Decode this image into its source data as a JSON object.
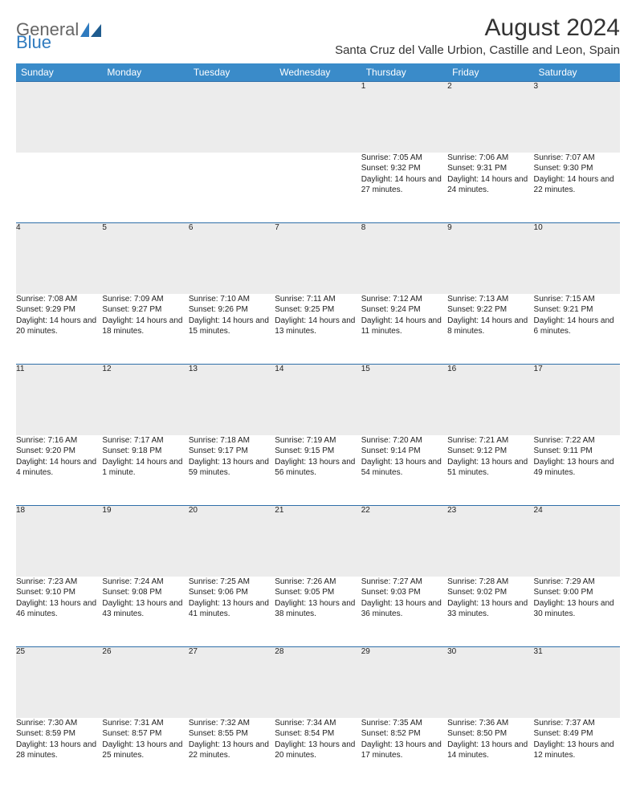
{
  "brand": {
    "part1": "General",
    "part2": "Blue"
  },
  "title": "August 2024",
  "location": "Santa Cruz del Valle Urbion, Castille and Leon, Spain",
  "colors": {
    "header_bg": "#3a8bc9",
    "header_text": "#ffffff",
    "daynum_bg": "#ececec",
    "row_border": "#2f6fa8",
    "text": "#222222",
    "brand_gray": "#666666",
    "brand_blue": "#2f7bbf"
  },
  "daysOfWeek": [
    "Sunday",
    "Monday",
    "Tuesday",
    "Wednesday",
    "Thursday",
    "Friday",
    "Saturday"
  ],
  "weeks": [
    [
      null,
      null,
      null,
      null,
      {
        "n": "1",
        "sr": "7:05 AM",
        "ss": "9:32 PM",
        "dl": "14 hours and 27 minutes."
      },
      {
        "n": "2",
        "sr": "7:06 AM",
        "ss": "9:31 PM",
        "dl": "14 hours and 24 minutes."
      },
      {
        "n": "3",
        "sr": "7:07 AM",
        "ss": "9:30 PM",
        "dl": "14 hours and 22 minutes."
      }
    ],
    [
      {
        "n": "4",
        "sr": "7:08 AM",
        "ss": "9:29 PM",
        "dl": "14 hours and 20 minutes."
      },
      {
        "n": "5",
        "sr": "7:09 AM",
        "ss": "9:27 PM",
        "dl": "14 hours and 18 minutes."
      },
      {
        "n": "6",
        "sr": "7:10 AM",
        "ss": "9:26 PM",
        "dl": "14 hours and 15 minutes."
      },
      {
        "n": "7",
        "sr": "7:11 AM",
        "ss": "9:25 PM",
        "dl": "14 hours and 13 minutes."
      },
      {
        "n": "8",
        "sr": "7:12 AM",
        "ss": "9:24 PM",
        "dl": "14 hours and 11 minutes."
      },
      {
        "n": "9",
        "sr": "7:13 AM",
        "ss": "9:22 PM",
        "dl": "14 hours and 8 minutes."
      },
      {
        "n": "10",
        "sr": "7:15 AM",
        "ss": "9:21 PM",
        "dl": "14 hours and 6 minutes."
      }
    ],
    [
      {
        "n": "11",
        "sr": "7:16 AM",
        "ss": "9:20 PM",
        "dl": "14 hours and 4 minutes."
      },
      {
        "n": "12",
        "sr": "7:17 AM",
        "ss": "9:18 PM",
        "dl": "14 hours and 1 minute."
      },
      {
        "n": "13",
        "sr": "7:18 AM",
        "ss": "9:17 PM",
        "dl": "13 hours and 59 minutes."
      },
      {
        "n": "14",
        "sr": "7:19 AM",
        "ss": "9:15 PM",
        "dl": "13 hours and 56 minutes."
      },
      {
        "n": "15",
        "sr": "7:20 AM",
        "ss": "9:14 PM",
        "dl": "13 hours and 54 minutes."
      },
      {
        "n": "16",
        "sr": "7:21 AM",
        "ss": "9:12 PM",
        "dl": "13 hours and 51 minutes."
      },
      {
        "n": "17",
        "sr": "7:22 AM",
        "ss": "9:11 PM",
        "dl": "13 hours and 49 minutes."
      }
    ],
    [
      {
        "n": "18",
        "sr": "7:23 AM",
        "ss": "9:10 PM",
        "dl": "13 hours and 46 minutes."
      },
      {
        "n": "19",
        "sr": "7:24 AM",
        "ss": "9:08 PM",
        "dl": "13 hours and 43 minutes."
      },
      {
        "n": "20",
        "sr": "7:25 AM",
        "ss": "9:06 PM",
        "dl": "13 hours and 41 minutes."
      },
      {
        "n": "21",
        "sr": "7:26 AM",
        "ss": "9:05 PM",
        "dl": "13 hours and 38 minutes."
      },
      {
        "n": "22",
        "sr": "7:27 AM",
        "ss": "9:03 PM",
        "dl": "13 hours and 36 minutes."
      },
      {
        "n": "23",
        "sr": "7:28 AM",
        "ss": "9:02 PM",
        "dl": "13 hours and 33 minutes."
      },
      {
        "n": "24",
        "sr": "7:29 AM",
        "ss": "9:00 PM",
        "dl": "13 hours and 30 minutes."
      }
    ],
    [
      {
        "n": "25",
        "sr": "7:30 AM",
        "ss": "8:59 PM",
        "dl": "13 hours and 28 minutes."
      },
      {
        "n": "26",
        "sr": "7:31 AM",
        "ss": "8:57 PM",
        "dl": "13 hours and 25 minutes."
      },
      {
        "n": "27",
        "sr": "7:32 AM",
        "ss": "8:55 PM",
        "dl": "13 hours and 22 minutes."
      },
      {
        "n": "28",
        "sr": "7:34 AM",
        "ss": "8:54 PM",
        "dl": "13 hours and 20 minutes."
      },
      {
        "n": "29",
        "sr": "7:35 AM",
        "ss": "8:52 PM",
        "dl": "13 hours and 17 minutes."
      },
      {
        "n": "30",
        "sr": "7:36 AM",
        "ss": "8:50 PM",
        "dl": "13 hours and 14 minutes."
      },
      {
        "n": "31",
        "sr": "7:37 AM",
        "ss": "8:49 PM",
        "dl": "13 hours and 12 minutes."
      }
    ]
  ],
  "labels": {
    "sunrise": "Sunrise:",
    "sunset": "Sunset:",
    "daylight": "Daylight:"
  }
}
